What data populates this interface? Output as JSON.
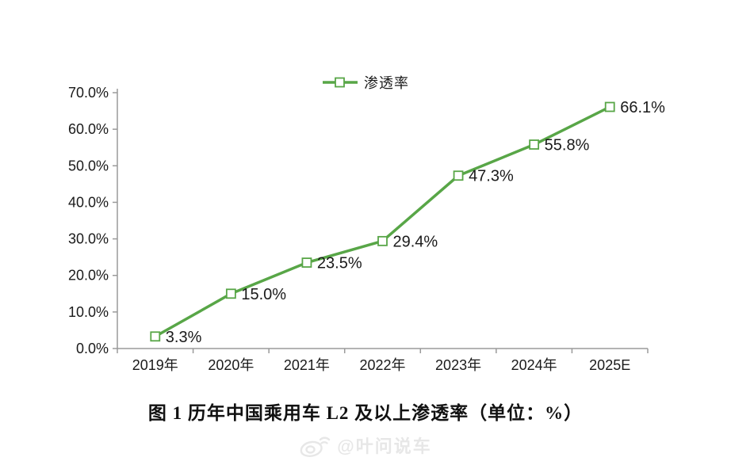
{
  "legend": {
    "label": "渗透率",
    "marker": "open-square-on-line"
  },
  "caption": "图 1  历年中国乘用车 L2 及以上渗透率（单位：%）",
  "watermark": {
    "icon": "weibo-icon",
    "handle": "@叶问说车"
  },
  "colors": {
    "line": "#58a647",
    "marker_fill": "#ffffff",
    "marker_border": "#58a647",
    "axis": "#9a9a9a",
    "tick": "#6e6e6e",
    "text": "#1a1a1a",
    "watermark": "#e7e7e7"
  },
  "chart_data": {
    "type": "line",
    "title": "图 1  历年中国乘用车 L2 及以上渗透率（单位：%）",
    "categories": [
      "2019年",
      "2020年",
      "2021年",
      "2022年",
      "2023年",
      "2024年",
      "2025E"
    ],
    "series": [
      {
        "name": "渗透率",
        "values": [
          3.3,
          15.0,
          23.5,
          29.4,
          47.3,
          55.8,
          66.1
        ]
      }
    ],
    "point_labels": [
      "3.3%",
      "15.0%",
      "23.5%",
      "29.4%",
      "47.3%",
      "55.8%",
      "66.1%"
    ],
    "ytick_labels": [
      "0.0%",
      "10.0%",
      "20.0%",
      "30.0%",
      "40.0%",
      "50.0%",
      "60.0%",
      "70.0%"
    ],
    "ytick_values": [
      0,
      10,
      20,
      30,
      40,
      50,
      60,
      70
    ],
    "ylim": [
      0,
      70
    ],
    "xlabel": "",
    "ylabel": "",
    "grid": false,
    "legend_position": "top-center",
    "marker": "open-square"
  }
}
